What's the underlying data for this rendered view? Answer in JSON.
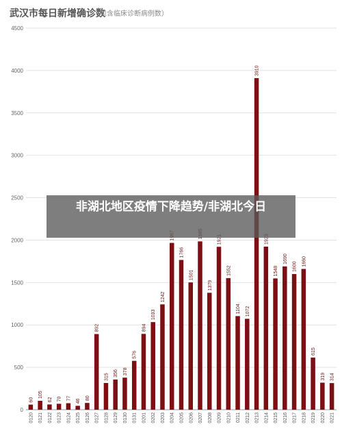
{
  "colors": {
    "bar": "#7b0f14",
    "grid": "#e2e2e2",
    "axis": "#999999"
  },
  "overlay_text": "非湖北地区疫情下降趋势/非湖北今日",
  "chart_data": {
    "type": "bar",
    "title": "武汉市每日新增确诊数",
    "subtitle": "（包含临床诊断病例数）",
    "xlabel": "",
    "ylabel": "",
    "ylim": [
      0,
      4500
    ],
    "yticks": [
      0,
      500,
      1000,
      1500,
      2000,
      2500,
      3000,
      3500,
      4000,
      4500
    ],
    "grid": true,
    "categories": [
      "0120",
      "0121",
      "0122",
      "0123",
      "0124",
      "0125",
      "0126",
      "0127",
      "0128",
      "0129",
      "0130",
      "0131",
      "0201",
      "0202",
      "0203",
      "0204",
      "0205",
      "0206",
      "0207",
      "0208",
      "0209",
      "0210",
      "0211",
      "0212",
      "0213",
      "0214",
      "0215",
      "0216",
      "0217",
      "0218",
      "0219",
      "0220",
      "0221"
    ],
    "values": [
      60,
      105,
      62,
      70,
      77,
      46,
      80,
      892,
      315,
      356,
      378,
      576,
      894,
      1033,
      1242,
      1967,
      1766,
      1501,
      1985,
      1379,
      1921,
      1552,
      1104,
      1072,
      3910,
      1923,
      1548,
      1690,
      1600,
      1660,
      615,
      319,
      314
    ]
  }
}
